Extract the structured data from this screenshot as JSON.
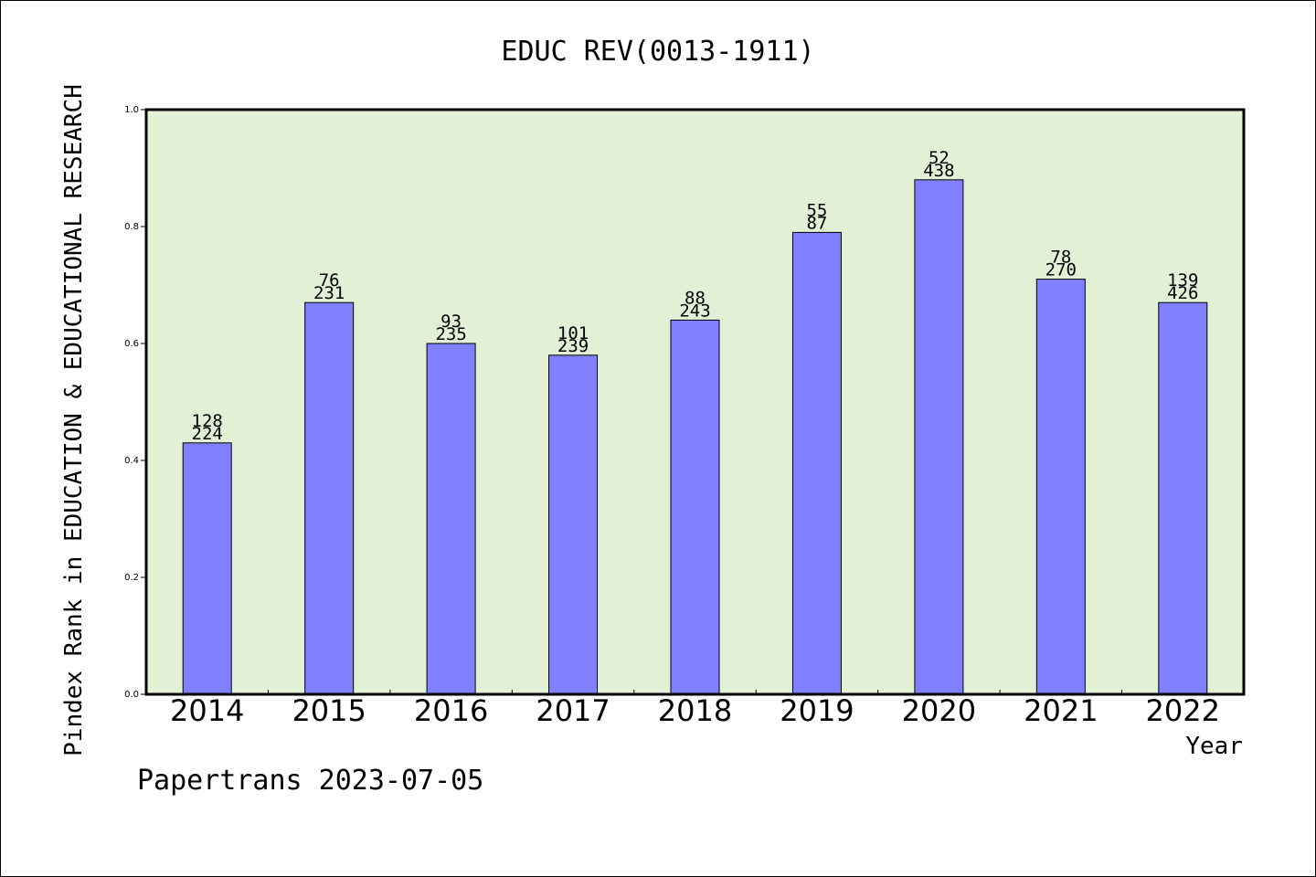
{
  "chart_data": {
    "type": "bar",
    "title": "EDUC REV(0013-1911)",
    "xlabel": "Year",
    "ylabel": "Pindex Rank in EDUCATION & EDUCATIONAL RESEARCH",
    "categories": [
      "2014",
      "2015",
      "2016",
      "2017",
      "2018",
      "2019",
      "2020",
      "2021",
      "2022"
    ],
    "values": [
      0.43,
      0.67,
      0.6,
      0.58,
      0.64,
      0.79,
      0.88,
      0.71,
      0.67
    ],
    "rank_labels": [
      "128",
      "76",
      "93",
      "101",
      "88",
      "55",
      "52",
      "78",
      "139"
    ],
    "total_labels": [
      "224",
      "231",
      "235",
      "239",
      "243",
      "87",
      "438",
      "270",
      "426"
    ],
    "ylim": [
      0,
      1.0
    ],
    "yticks": [
      "0.0",
      "0.2",
      "0.4",
      "0.6",
      "0.8",
      "1.0"
    ],
    "grid": false,
    "colors": {
      "bar": "#8080ff",
      "plot_bg": "#e2f0d6",
      "axis": "#000000"
    }
  },
  "footer": {
    "credit": "Papertrans 2023-07-05"
  }
}
